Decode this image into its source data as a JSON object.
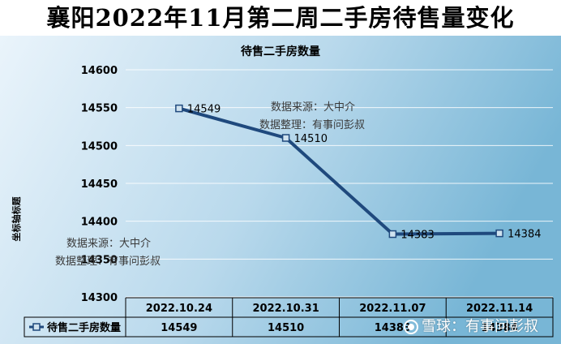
{
  "page": {
    "title": "襄阳2022年11月第二周二手房待售量变化"
  },
  "annotations": [
    {
      "id": "source-1",
      "text": "数据来源：大中介"
    },
    {
      "id": "organizer-1",
      "text": "数据整理：有事问彭叔"
    },
    {
      "id": "source-2",
      "text": "数据来源：大中介"
    },
    {
      "id": "organizer-2",
      "text": "数据整理：有事问彭叔"
    }
  ],
  "watermark": {
    "text": "雪球：有事问彭叔"
  },
  "colors": {
    "line": "#1f497d",
    "marker_fill": "#cfe2ef",
    "bg_light": "#e8f3fa",
    "bg_dark": "#7fbbd9",
    "grid": "#ffffff",
    "text": "#000000"
  },
  "chart_data": {
    "type": "line",
    "title": "待售二手房数量",
    "ylabel": "坐标轴标题",
    "xlabel": "",
    "categories": [
      "2022.10.24",
      "2022.10.31",
      "2022.11.07",
      "2022.11.14"
    ],
    "series": [
      {
        "name": "待售二手房数量",
        "values": [
          14549,
          14510,
          14383,
          14384
        ]
      }
    ],
    "yticks": [
      14300,
      14350,
      14400,
      14450,
      14500,
      14550,
      14600
    ],
    "ylim": [
      14300,
      14600
    ],
    "grid": true,
    "legend": "data-table",
    "data_labels": true,
    "data_table": true
  }
}
